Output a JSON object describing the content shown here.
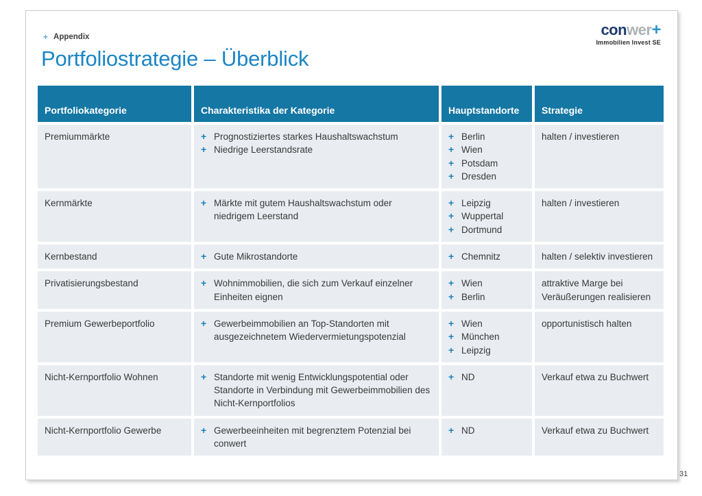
{
  "header": {
    "appendix_bullet": "+",
    "appendix": "Appendix",
    "title": "Portfoliostrategie – Überblick"
  },
  "logo": {
    "part1": "con",
    "part2": "wer",
    "part3": "+",
    "subtitle": "Immobilien Invest SE"
  },
  "icons": {
    "plus_bullet": "+"
  },
  "colors": {
    "accent_blue": "#1b85c4",
    "header_teal": "#1577a3",
    "row_bg": "#e9edf1",
    "bullet_blue": "#1c7fbc",
    "logo_navy": "#1d3c6e",
    "logo_gray": "#aeb2b5"
  },
  "table": {
    "headers": [
      "Portfoliokategorie",
      "Charakteristika der Kategorie",
      "Hauptstandorte",
      "Strategie"
    ],
    "rows": [
      {
        "category": "Premiummärkte",
        "characteristics": [
          "Prognostiziertes starkes Haushaltswachstum",
          "Niedrige Leerstandsrate"
        ],
        "locations": [
          "Berlin",
          "Wien",
          "Potsdam",
          "Dresden"
        ],
        "strategy": "halten / investieren"
      },
      {
        "category": "Kernmärkte",
        "characteristics": [
          "Märkte mit gutem Haushaltswachstum oder niedrigem Leerstand"
        ],
        "locations": [
          "Leipzig",
          "Wuppertal",
          "Dortmund"
        ],
        "strategy": "halten / investieren"
      },
      {
        "category": "Kernbestand",
        "characteristics": [
          "Gute Mikrostandorte"
        ],
        "locations": [
          "Chemnitz"
        ],
        "strategy": "halten / selektiv investieren"
      },
      {
        "category": "Privatisierungsbestand",
        "characteristics": [
          "Wohnimmobilien, die sich zum Verkauf einzelner Einheiten eignen"
        ],
        "locations": [
          "Wien",
          "Berlin"
        ],
        "strategy": "attraktive Marge bei Veräußerungen realisieren"
      },
      {
        "category": "Premium Gewerbeportfolio",
        "characteristics": [
          "Gewerbeimmobilien an Top-Standorten mit ausgezeichnetem Wiedervermietungspotenzial"
        ],
        "locations": [
          "Wien",
          "München",
          "Leipzig"
        ],
        "strategy": "opportunistisch halten"
      },
      {
        "category": "Nicht-Kernportfolio Wohnen",
        "characteristics": [
          "Standorte mit wenig Entwicklungspotential oder Standorte in Verbindung mit Gewerbeimmobilien des Nicht-Kernportfolios"
        ],
        "locations": [
          "ND"
        ],
        "strategy": "Verkauf etwa zu Buchwert"
      },
      {
        "category": "Nicht-Kernportfolio Gewerbe",
        "characteristics": [
          "Gewerbeeinheiten mit begrenztem Potenzial bei conwert"
        ],
        "locations": [
          "ND"
        ],
        "strategy": "Verkauf etwa zu Buchwert"
      }
    ]
  },
  "footer": {
    "page_number": "31"
  }
}
